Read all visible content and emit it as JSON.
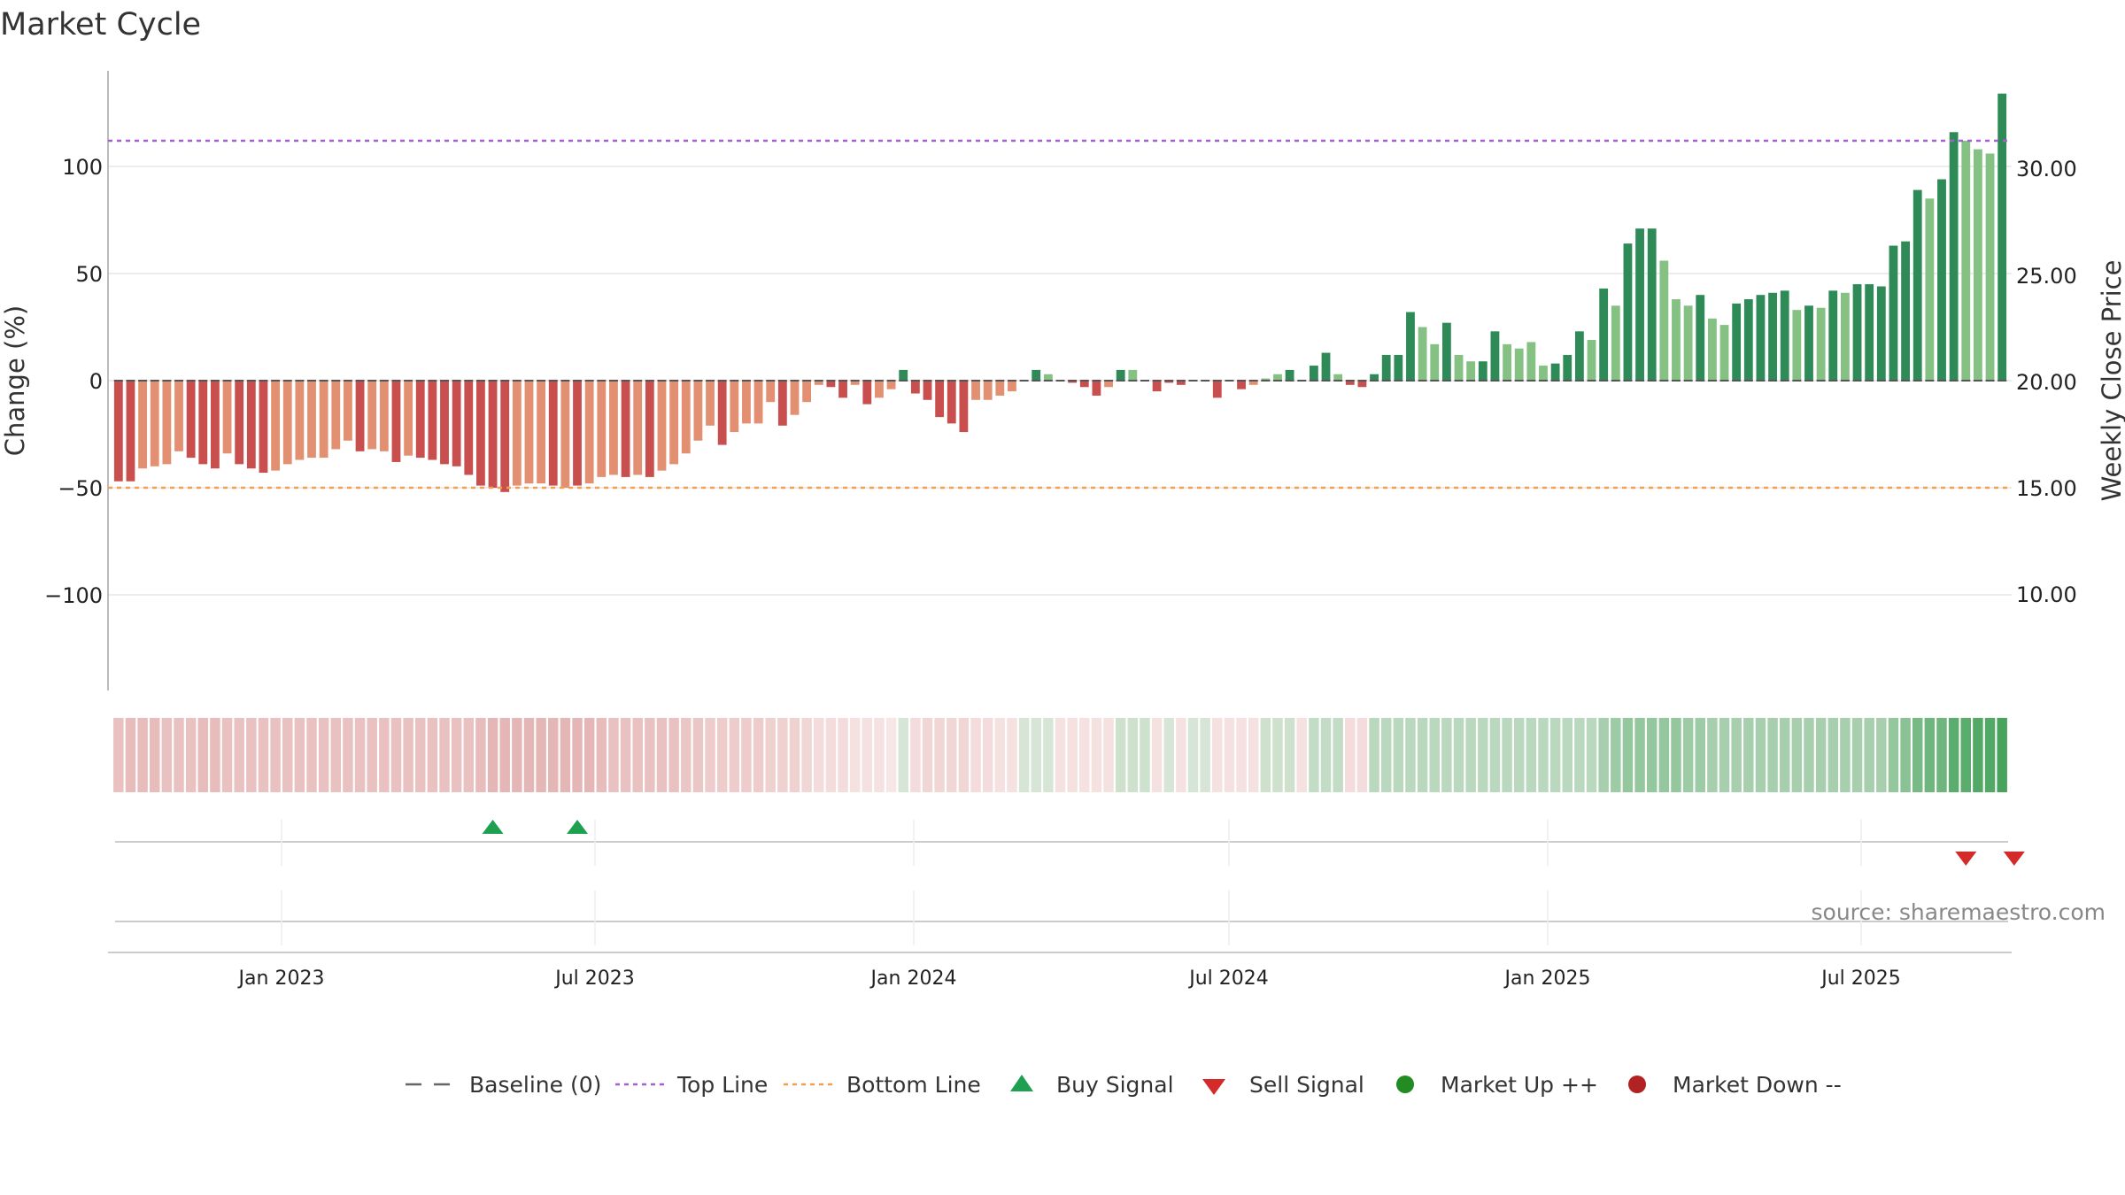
{
  "chart_data": {
    "type": "bar",
    "title": "Market Cycle",
    "ylabel_left": "Change (%)",
    "ylabel_right": "Weekly Close Price",
    "ylim_left": [
      -145,
      145
    ],
    "ylim_right": [
      5.5,
      34.5
    ],
    "yticks_left": [
      {
        "value": 100,
        "label": "100"
      },
      {
        "value": 50,
        "label": "50"
      },
      {
        "value": 0,
        "label": "0"
      },
      {
        "value": -50,
        "label": "−50"
      },
      {
        "value": -100,
        "label": "−100"
      }
    ],
    "yticks_right": [
      "30.00",
      "25.00",
      "20.00",
      "15.00",
      "10.00"
    ],
    "xticks": [
      "Jan 2023",
      "Jul 2023",
      "Jan 2024",
      "Jul 2024",
      "Jan 2025",
      "Jul 2025"
    ],
    "reference_lines": {
      "top": 112,
      "bottom": -50,
      "baseline": 0
    },
    "colors": {
      "strong_down": "#c94f4f",
      "weak_down": "#e39072",
      "weak_up": "#86c184",
      "strong_up": "#2e8b57",
      "top_line": "#a45fd0",
      "bottom_line": "#f0a050",
      "buy": "#1fa050",
      "sell": "#d42a2a",
      "market_up": "#228b22",
      "market_down": "#b22222"
    },
    "values": [
      -47,
      -47,
      -41,
      -40,
      -39,
      -33,
      -36,
      -39,
      -41,
      -34,
      -39,
      -41,
      -43,
      -42,
      -39,
      -37,
      -36,
      -36,
      -32,
      -28,
      -33,
      -32,
      -33,
      -38,
      -35,
      -36,
      -37,
      -39,
      -40,
      -44,
      -49,
      -50,
      -52,
      -49,
      -48,
      -48,
      -49,
      -50,
      -49,
      -48,
      -45,
      -44,
      -45,
      -44,
      -45,
      -42,
      -39,
      -34,
      -28,
      -21,
      -30,
      -24,
      -20,
      -20,
      -10,
      -21,
      -16,
      -10,
      -2,
      -3,
      -8,
      -2,
      -11,
      -8,
      -4,
      5,
      -6,
      -9,
      -17,
      -20,
      -24,
      -9,
      -9,
      -7,
      -5,
      0,
      5,
      3,
      0,
      -1,
      -3,
      -7,
      -3,
      5,
      5,
      0,
      -5,
      -1,
      -2,
      0,
      0,
      -8,
      0,
      -4,
      -2,
      1,
      3,
      5,
      0,
      7,
      13,
      3,
      -2,
      -3,
      3,
      12,
      12,
      32,
      25,
      17,
      27,
      12,
      9,
      9,
      23,
      17,
      15,
      18,
      7,
      8,
      12,
      23,
      19,
      43,
      35,
      64,
      71,
      71,
      56,
      38,
      35,
      40,
      29,
      26,
      36,
      38,
      40,
      41,
      42,
      33,
      35,
      34,
      42,
      41,
      45,
      45,
      44,
      63,
      65,
      89,
      85,
      94,
      116,
      112,
      108,
      106,
      134
    ],
    "shades": [
      2,
      2,
      1,
      1,
      1,
      1,
      2,
      2,
      2,
      1,
      2,
      2,
      2,
      1,
      1,
      1,
      1,
      1,
      1,
      1,
      2,
      1,
      1,
      2,
      1,
      2,
      2,
      2,
      2,
      2,
      2,
      2,
      2,
      1,
      1,
      1,
      2,
      1,
      2,
      1,
      1,
      1,
      2,
      1,
      2,
      1,
      1,
      1,
      1,
      1,
      2,
      1,
      1,
      1,
      1,
      2,
      1,
      1,
      1,
      2,
      2,
      1,
      2,
      1,
      1,
      4,
      2,
      2,
      2,
      2,
      2,
      1,
      1,
      1,
      1,
      3,
      4,
      3,
      3,
      2,
      2,
      2,
      1,
      4,
      3,
      3,
      2,
      2,
      2,
      3,
      2,
      2,
      2,
      2,
      1,
      3,
      3,
      4,
      3,
      4,
      4,
      3,
      2,
      2,
      4,
      4,
      4,
      4,
      3,
      3,
      4,
      3,
      3,
      4,
      4,
      3,
      3,
      3,
      3,
      4,
      4,
      4,
      3,
      4,
      3,
      4,
      4,
      4,
      3,
      3,
      3,
      4,
      3,
      3,
      4,
      4,
      4,
      4,
      4,
      3,
      4,
      3,
      4,
      3,
      4,
      4,
      4,
      4,
      4,
      4,
      3,
      4,
      4,
      3,
      3,
      3,
      4
    ],
    "heat": [
      -0.5,
      -0.55,
      -0.55,
      -0.55,
      -0.5,
      -0.5,
      -0.5,
      -0.55,
      -0.55,
      -0.5,
      -0.5,
      -0.5,
      -0.5,
      -0.5,
      -0.5,
      -0.5,
      -0.5,
      -0.5,
      -0.5,
      -0.5,
      -0.5,
      -0.5,
      -0.5,
      -0.5,
      -0.5,
      -0.5,
      -0.5,
      -0.5,
      -0.5,
      -0.5,
      -0.55,
      -0.6,
      -0.6,
      -0.6,
      -0.6,
      -0.6,
      -0.6,
      -0.6,
      -0.6,
      -0.6,
      -0.55,
      -0.5,
      -0.5,
      -0.5,
      -0.5,
      -0.5,
      -0.5,
      -0.45,
      -0.45,
      -0.4,
      -0.4,
      -0.4,
      -0.4,
      -0.4,
      -0.35,
      -0.35,
      -0.35,
      -0.3,
      -0.25,
      -0.25,
      -0.25,
      -0.2,
      -0.2,
      -0.2,
      -0.15,
      0.2,
      -0.25,
      -0.3,
      -0.3,
      -0.3,
      -0.3,
      -0.25,
      -0.25,
      -0.2,
      -0.2,
      0.2,
      0.2,
      0.2,
      -0.2,
      -0.2,
      -0.2,
      -0.2,
      -0.2,
      0.25,
      0.25,
      0.25,
      -0.2,
      0.2,
      -0.2,
      0.2,
      0.2,
      -0.2,
      -0.2,
      -0.2,
      -0.2,
      0.25,
      0.25,
      0.25,
      -0.2,
      0.3,
      0.3,
      0.3,
      -0.25,
      -0.25,
      0.35,
      0.35,
      0.35,
      0.35,
      0.35,
      0.35,
      0.35,
      0.35,
      0.35,
      0.35,
      0.35,
      0.35,
      0.35,
      0.35,
      0.35,
      0.35,
      0.35,
      0.35,
      0.35,
      0.45,
      0.5,
      0.55,
      0.55,
      0.55,
      0.55,
      0.55,
      0.5,
      0.5,
      0.45,
      0.45,
      0.45,
      0.45,
      0.45,
      0.45,
      0.45,
      0.45,
      0.45,
      0.45,
      0.45,
      0.45,
      0.45,
      0.45,
      0.45,
      0.55,
      0.6,
      0.7,
      0.75,
      0.75,
      0.85,
      0.85,
      0.9,
      0.9,
      0.95
    ],
    "buy_signals": [
      31,
      38
    ],
    "sell_signals": [
      153,
      157
    ],
    "legend": [
      "Baseline (0)",
      "Top Line",
      "Bottom Line",
      "Buy Signal",
      "Sell Signal",
      "Market Up ++",
      "Market Down --"
    ],
    "source": "source: sharemaestro.com"
  }
}
